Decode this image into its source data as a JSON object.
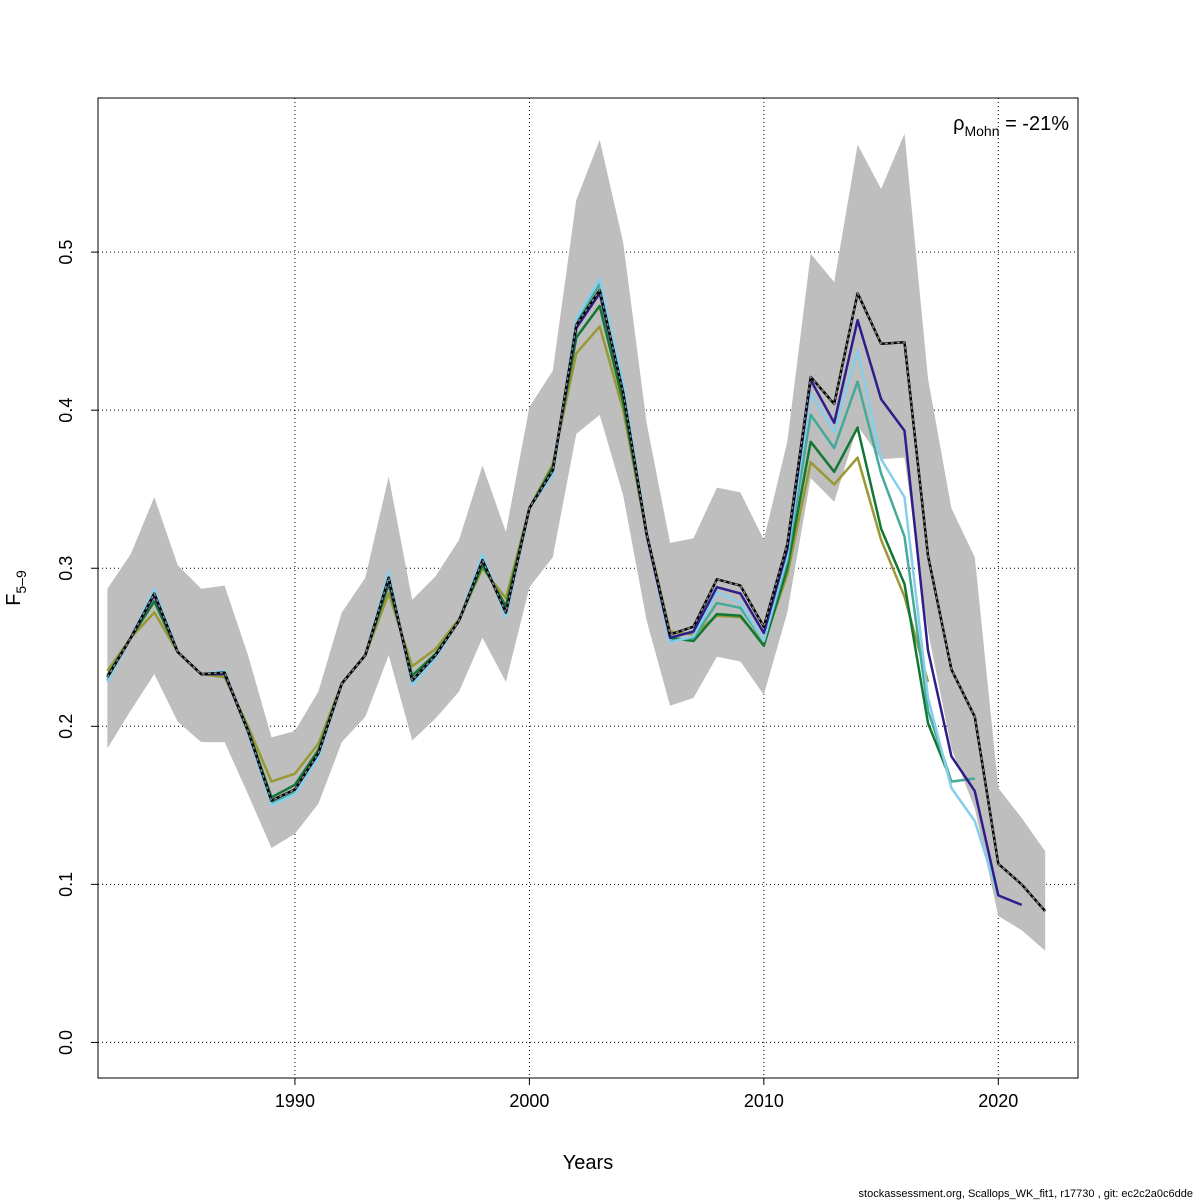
{
  "chart_data": {
    "type": "line",
    "title": "",
    "xlabel": "Years",
    "ylabel": {
      "main": "F",
      "sub": "5–9"
    },
    "xlim": [
      1981.6,
      2023.4
    ],
    "ylim": [
      -0.0225,
      0.5975
    ],
    "xticks": [
      1990,
      2000,
      2010,
      2020
    ],
    "yticks": [
      0.0,
      0.1,
      0.2,
      0.3,
      0.4,
      0.5
    ],
    "ytick_labels": [
      "0.0",
      "0.1",
      "0.2",
      "0.3",
      "0.4",
      "0.5"
    ],
    "xtick_labels": [
      "1990",
      "2000",
      "2010",
      "2020"
    ],
    "grid": true,
    "annotation": {
      "symbol": "ρ",
      "sub": "Mohn",
      "value": " = -21%",
      "placement": "top-right"
    },
    "confidence_band": {
      "x": [
        1982,
        1983,
        1984,
        1985,
        1986,
        1987,
        1988,
        1989,
        1990,
        1991,
        1992,
        1993,
        1994,
        1995,
        1996,
        1997,
        1998,
        1999,
        2000,
        2001,
        2002,
        2003,
        2004,
        2005,
        2006,
        2007,
        2008,
        2009,
        2010,
        2011,
        2012,
        2013,
        2014,
        2015,
        2016,
        2017,
        2018,
        2019,
        2020,
        2021,
        2022
      ],
      "upper": [
        0.287,
        0.309,
        0.345,
        0.302,
        0.287,
        0.289,
        0.245,
        0.193,
        0.197,
        0.222,
        0.272,
        0.294,
        0.358,
        0.28,
        0.295,
        0.318,
        0.365,
        0.323,
        0.402,
        0.425,
        0.533,
        0.571,
        0.506,
        0.392,
        0.316,
        0.319,
        0.351,
        0.348,
        0.318,
        0.38,
        0.499,
        0.481,
        0.568,
        0.54,
        0.575,
        0.42,
        0.338,
        0.307,
        0.161,
        0.142,
        0.121
      ],
      "lower": [
        0.186,
        0.21,
        0.233,
        0.203,
        0.19,
        0.19,
        0.157,
        0.123,
        0.132,
        0.151,
        0.19,
        0.206,
        0.245,
        0.191,
        0.205,
        0.222,
        0.256,
        0.228,
        0.288,
        0.307,
        0.385,
        0.397,
        0.346,
        0.267,
        0.213,
        0.218,
        0.244,
        0.241,
        0.22,
        0.272,
        0.357,
        0.342,
        0.39,
        0.369,
        0.37,
        0.26,
        0.186,
        0.148,
        0.08,
        0.071,
        0.058
      ],
      "color": "#bebebe"
    },
    "series": [
      {
        "color": "#000000",
        "dashed_overlay": true,
        "x": [
          1982,
          1983,
          1984,
          1985,
          1986,
          1987,
          1988,
          1989,
          1990,
          1991,
          1992,
          1993,
          1994,
          1995,
          1996,
          1997,
          1998,
          1999,
          2000,
          2001,
          2002,
          2003,
          2004,
          2005,
          2006,
          2007,
          2008,
          2009,
          2010,
          2011,
          2012,
          2013,
          2014,
          2015,
          2016,
          2017,
          2018,
          2019,
          2020,
          2021,
          2022
        ],
        "values": [
          0.231,
          0.256,
          0.284,
          0.247,
          0.233,
          0.234,
          0.197,
          0.153,
          0.16,
          0.183,
          0.227,
          0.245,
          0.294,
          0.229,
          0.245,
          0.267,
          0.305,
          0.272,
          0.338,
          0.362,
          0.454,
          0.476,
          0.411,
          0.322,
          0.258,
          0.263,
          0.293,
          0.289,
          0.263,
          0.315,
          0.421,
          0.404,
          0.474,
          0.442,
          0.443,
          0.308,
          0.236,
          0.206,
          0.113,
          0.1,
          0.083
        ]
      },
      {
        "color": "#2d1e8c",
        "x": [
          1982,
          1983,
          1984,
          1985,
          1986,
          1987,
          1988,
          1989,
          1990,
          1991,
          1992,
          1993,
          1994,
          1995,
          1996,
          1997,
          1998,
          1999,
          2000,
          2001,
          2002,
          2003,
          2004,
          2005,
          2006,
          2007,
          2008,
          2009,
          2010,
          2011,
          2012,
          2013,
          2014,
          2015,
          2016,
          2017,
          2018,
          2019,
          2020,
          2021
        ],
        "values": [
          0.231,
          0.256,
          0.283,
          0.247,
          0.233,
          0.233,
          0.197,
          0.153,
          0.16,
          0.183,
          0.227,
          0.245,
          0.293,
          0.229,
          0.245,
          0.267,
          0.305,
          0.272,
          0.338,
          0.362,
          0.452,
          0.474,
          0.411,
          0.321,
          0.256,
          0.26,
          0.288,
          0.284,
          0.259,
          0.312,
          0.419,
          0.392,
          0.457,
          0.407,
          0.387,
          0.248,
          0.181,
          0.159,
          0.093,
          0.087
        ]
      },
      {
        "color": "#87ceeb",
        "x": [
          1982,
          1983,
          1984,
          1985,
          1986,
          1987,
          1988,
          1989,
          1990,
          1991,
          1992,
          1993,
          1994,
          1995,
          1996,
          1997,
          1998,
          1999,
          2000,
          2001,
          2002,
          2003,
          2004,
          2005,
          2006,
          2007,
          2008,
          2009,
          2010,
          2011,
          2012,
          2013,
          2014,
          2015,
          2016,
          2017,
          2018,
          2019,
          2020
        ],
        "values": [
          0.228,
          0.256,
          0.287,
          0.247,
          0.233,
          0.235,
          0.196,
          0.15,
          0.157,
          0.18,
          0.227,
          0.245,
          0.298,
          0.226,
          0.243,
          0.267,
          0.309,
          0.269,
          0.338,
          0.359,
          0.458,
          0.483,
          0.417,
          0.322,
          0.253,
          0.257,
          0.285,
          0.278,
          0.254,
          0.308,
          0.411,
          0.386,
          0.438,
          0.369,
          0.345,
          0.218,
          0.161,
          0.14,
          0.093
        ]
      },
      {
        "color": "#44aa99",
        "x": [
          1982,
          1983,
          1984,
          1985,
          1986,
          1987,
          1988,
          1989,
          1990,
          1991,
          1992,
          1993,
          1994,
          1995,
          1996,
          1997,
          1998,
          1999,
          2000,
          2001,
          2002,
          2003,
          2004,
          2005,
          2006,
          2007,
          2008,
          2009,
          2010,
          2011,
          2012,
          2013,
          2014,
          2015,
          2016,
          2017,
          2018,
          2019
        ],
        "values": [
          0.229,
          0.256,
          0.286,
          0.247,
          0.233,
          0.234,
          0.196,
          0.151,
          0.158,
          0.181,
          0.227,
          0.245,
          0.296,
          0.227,
          0.244,
          0.267,
          0.307,
          0.27,
          0.338,
          0.36,
          0.455,
          0.48,
          0.415,
          0.322,
          0.254,
          0.256,
          0.278,
          0.275,
          0.254,
          0.305,
          0.397,
          0.376,
          0.418,
          0.36,
          0.32,
          0.21,
          0.165,
          0.167
        ]
      },
      {
        "color": "#117733",
        "x": [
          1982,
          1983,
          1984,
          1985,
          1986,
          1987,
          1988,
          1989,
          1990,
          1991,
          1992,
          1993,
          1994,
          1995,
          1996,
          1997,
          1998,
          1999,
          2000,
          2001,
          2002,
          2003,
          2004,
          2005,
          2006,
          2007,
          2008,
          2009,
          2010,
          2011,
          2012,
          2013,
          2014,
          2015,
          2016,
          2017,
          2018
        ],
        "values": [
          0.232,
          0.256,
          0.279,
          0.247,
          0.233,
          0.233,
          0.198,
          0.155,
          0.163,
          0.185,
          0.227,
          0.245,
          0.29,
          0.232,
          0.246,
          0.267,
          0.302,
          0.276,
          0.338,
          0.364,
          0.446,
          0.466,
          0.405,
          0.322,
          0.256,
          0.254,
          0.271,
          0.27,
          0.251,
          0.3,
          0.38,
          0.361,
          0.389,
          0.325,
          0.29,
          0.202,
          0.165
        ]
      },
      {
        "color": "#999933",
        "x": [
          1982,
          1983,
          1984,
          1985,
          1986,
          1987,
          1988,
          1989,
          1990,
          1991,
          1992,
          1993,
          1994,
          1995,
          1996,
          1997,
          1998,
          1999,
          2000,
          2001,
          2002,
          2003,
          2004,
          2005,
          2006,
          2007,
          2008,
          2009,
          2010,
          2011,
          2012,
          2013,
          2014,
          2015,
          2016,
          2017
        ],
        "values": [
          0.235,
          0.256,
          0.272,
          0.247,
          0.233,
          0.231,
          0.2,
          0.165,
          0.17,
          0.189,
          0.227,
          0.245,
          0.284,
          0.238,
          0.249,
          0.268,
          0.3,
          0.281,
          0.338,
          0.366,
          0.436,
          0.453,
          0.4,
          0.322,
          0.26,
          0.258,
          0.27,
          0.269,
          0.253,
          0.296,
          0.367,
          0.353,
          0.37,
          0.318,
          0.282,
          0.228
        ]
      }
    ]
  },
  "footer": "stockassessment.org, Scallops_WK_fit1, r17730 , git: ec2c2a0c6dde"
}
